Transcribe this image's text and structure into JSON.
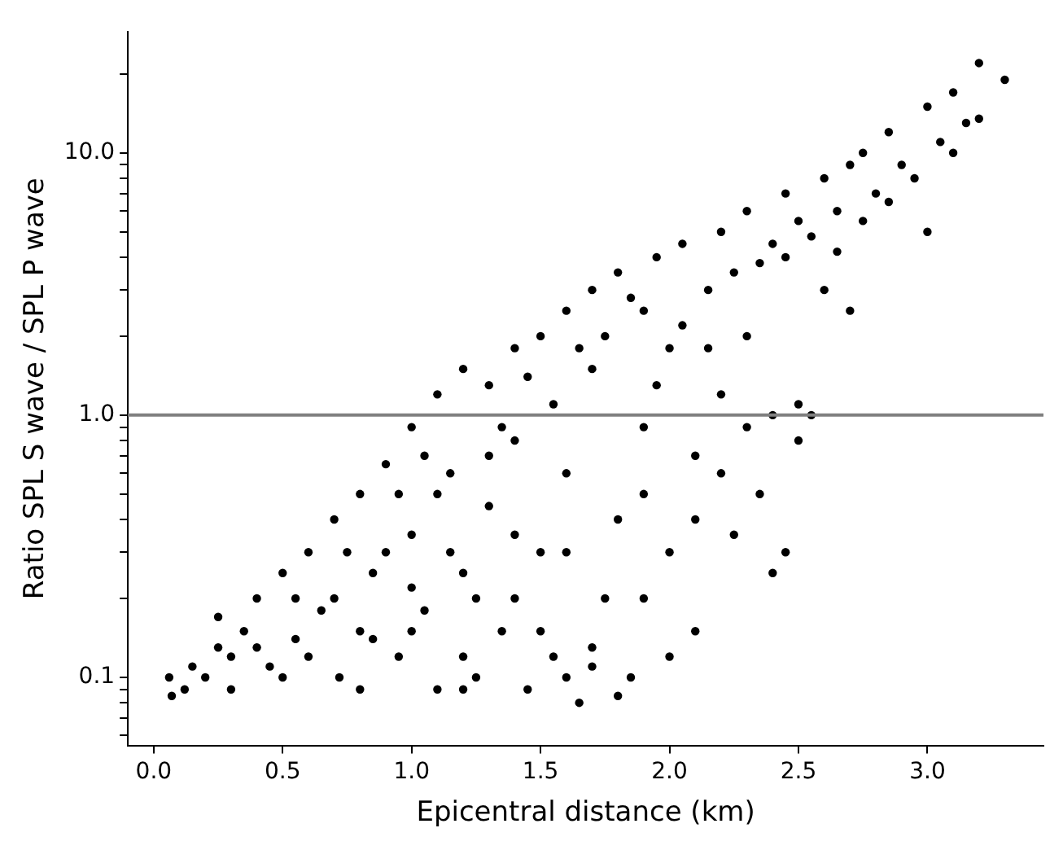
{
  "chart_data": {
    "type": "scatter",
    "xlabel": "Epicentral distance (km)",
    "ylabel": "Ratio SPL S wave / SPL P wave",
    "log": "y",
    "marker": "circle",
    "grid": false,
    "legend": false,
    "xlim": [
      -0.1,
      3.45
    ],
    "ylim": [
      0.055,
      29
    ],
    "xticks": [
      {
        "value": 0,
        "label": "0.0"
      },
      0.5,
      {
        "value": 1,
        "label": "1.0"
      },
      1.5,
      {
        "value": 2,
        "label": "2.0"
      },
      2.5,
      {
        "value": 3,
        "label": "3.0"
      }
    ],
    "yticks": [
      {
        "value": 0.06,
        "label": null
      },
      {
        "value": 0.07,
        "label": null
      },
      {
        "value": 0.08,
        "label": null
      },
      {
        "value": 0.09,
        "label": null
      },
      0.1,
      {
        "value": 0.2,
        "label": null
      },
      {
        "value": 0.3,
        "label": null
      },
      {
        "value": 0.4,
        "label": null
      },
      {
        "value": 0.5,
        "label": null
      },
      {
        "value": 0.6,
        "label": null
      },
      {
        "value": 0.7,
        "label": null
      },
      {
        "value": 0.8,
        "label": null
      },
      {
        "value": 0.9,
        "label": null
      },
      {
        "value": 1,
        "label": "1.0"
      },
      {
        "value": 2,
        "label": null
      },
      {
        "value": 3,
        "label": null
      },
      {
        "value": 4,
        "label": null
      },
      {
        "value": 5,
        "label": null
      },
      {
        "value": 6,
        "label": null
      },
      {
        "value": 7,
        "label": null
      },
      {
        "value": 8,
        "label": null
      },
      {
        "value": 9,
        "label": null
      },
      {
        "value": 10,
        "label": "10.0"
      },
      {
        "value": 20,
        "label": null
      }
    ],
    "ref_lines": [
      {
        "axis": "y",
        "value": 1,
        "color": "#808080"
      }
    ],
    "series": [
      {
        "color": "#000000",
        "x": [
          0.06,
          0.07,
          0.12,
          0.15,
          0.2,
          0.25,
          0.3,
          0.35,
          0.4,
          0.45,
          0.5,
          0.55,
          0.6,
          0.65,
          0.7,
          0.72,
          0.8,
          0.85,
          0.9,
          0.95,
          1.0,
          1.0,
          1.05,
          1.1,
          1.1,
          1.15,
          1.2,
          1.2,
          1.25,
          1.3,
          1.3,
          1.35,
          1.4,
          1.4,
          1.45,
          1.5,
          1.5,
          1.55,
          1.55,
          1.6,
          1.6,
          1.65,
          1.7,
          1.7,
          1.75,
          1.8,
          1.8,
          1.85,
          1.9,
          1.9,
          1.95,
          2.0,
          2.0,
          2.05,
          2.1,
          2.1,
          2.15,
          2.2,
          2.2,
          2.25,
          2.3,
          2.3,
          2.35,
          2.4,
          2.4,
          2.45,
          2.45,
          2.5,
          2.5,
          2.55,
          2.6,
          2.6,
          2.65,
          2.7,
          2.7,
          2.75,
          2.8,
          2.85,
          2.9,
          3.0,
          3.0,
          3.05,
          3.1,
          3.15,
          3.2,
          3.3,
          3.2,
          0.3,
          0.5,
          0.6,
          0.8,
          0.9,
          1.0,
          1.2,
          1.4,
          1.6,
          1.7,
          1.8,
          1.9,
          2.0,
          2.3,
          2.5,
          2.2,
          1.6,
          1.3,
          0.7,
          1.1,
          0.25,
          0.4,
          0.55,
          0.75,
          0.85,
          0.95,
          1.05,
          1.15,
          1.25,
          1.35,
          1.45,
          1.5,
          1.65,
          1.75,
          1.85,
          1.95,
          2.05,
          2.15,
          2.25,
          2.35,
          2.45,
          2.55,
          2.65,
          2.75,
          2.85,
          2.95,
          3.1,
          2.4,
          2.1,
          1.9,
          1.7,
          1.4,
          1.2,
          1.0,
          0.8
        ],
        "values": [
          0.1,
          0.085,
          0.09,
          0.11,
          0.1,
          0.13,
          0.12,
          0.15,
          0.2,
          0.11,
          0.25,
          0.14,
          0.3,
          0.18,
          0.4,
          0.1,
          0.5,
          0.25,
          0.65,
          0.12,
          0.9,
          0.35,
          0.18,
          1.2,
          0.09,
          0.6,
          1.5,
          0.25,
          0.1,
          1.3,
          0.45,
          0.15,
          1.8,
          0.8,
          0.09,
          2.0,
          0.3,
          1.1,
          0.12,
          2.5,
          0.6,
          0.08,
          3.0,
          1.5,
          0.2,
          3.5,
          0.4,
          0.1,
          2.5,
          0.9,
          4.0,
          0.3,
          1.8,
          4.5,
          0.15,
          0.7,
          3.0,
          5.0,
          1.2,
          0.35,
          6.0,
          2.0,
          0.5,
          4.5,
          1.0,
          7.0,
          0.3,
          5.5,
          0.8,
          1.0,
          8.0,
          3.0,
          6.0,
          9.0,
          2.5,
          10.0,
          7.0,
          12.0,
          9.0,
          15.0,
          5.0,
          11.0,
          17.0,
          13.0,
          22.0,
          19.0,
          13.5,
          0.09,
          0.1,
          0.12,
          0.09,
          0.3,
          0.15,
          0.09,
          0.2,
          0.1,
          0.13,
          0.085,
          0.2,
          0.12,
          0.9,
          1.1,
          0.6,
          0.3,
          0.7,
          0.2,
          0.5,
          0.17,
          0.13,
          0.2,
          0.3,
          0.14,
          0.5,
          0.7,
          0.3,
          0.2,
          0.9,
          1.4,
          0.15,
          1.8,
          2.0,
          2.8,
          1.3,
          2.2,
          1.8,
          3.5,
          3.8,
          4.0,
          4.8,
          4.2,
          5.5,
          6.5,
          8.0,
          10.0,
          0.25,
          0.4,
          0.5,
          0.11,
          0.35,
          0.12,
          0.22,
          0.15
        ]
      }
    ]
  }
}
